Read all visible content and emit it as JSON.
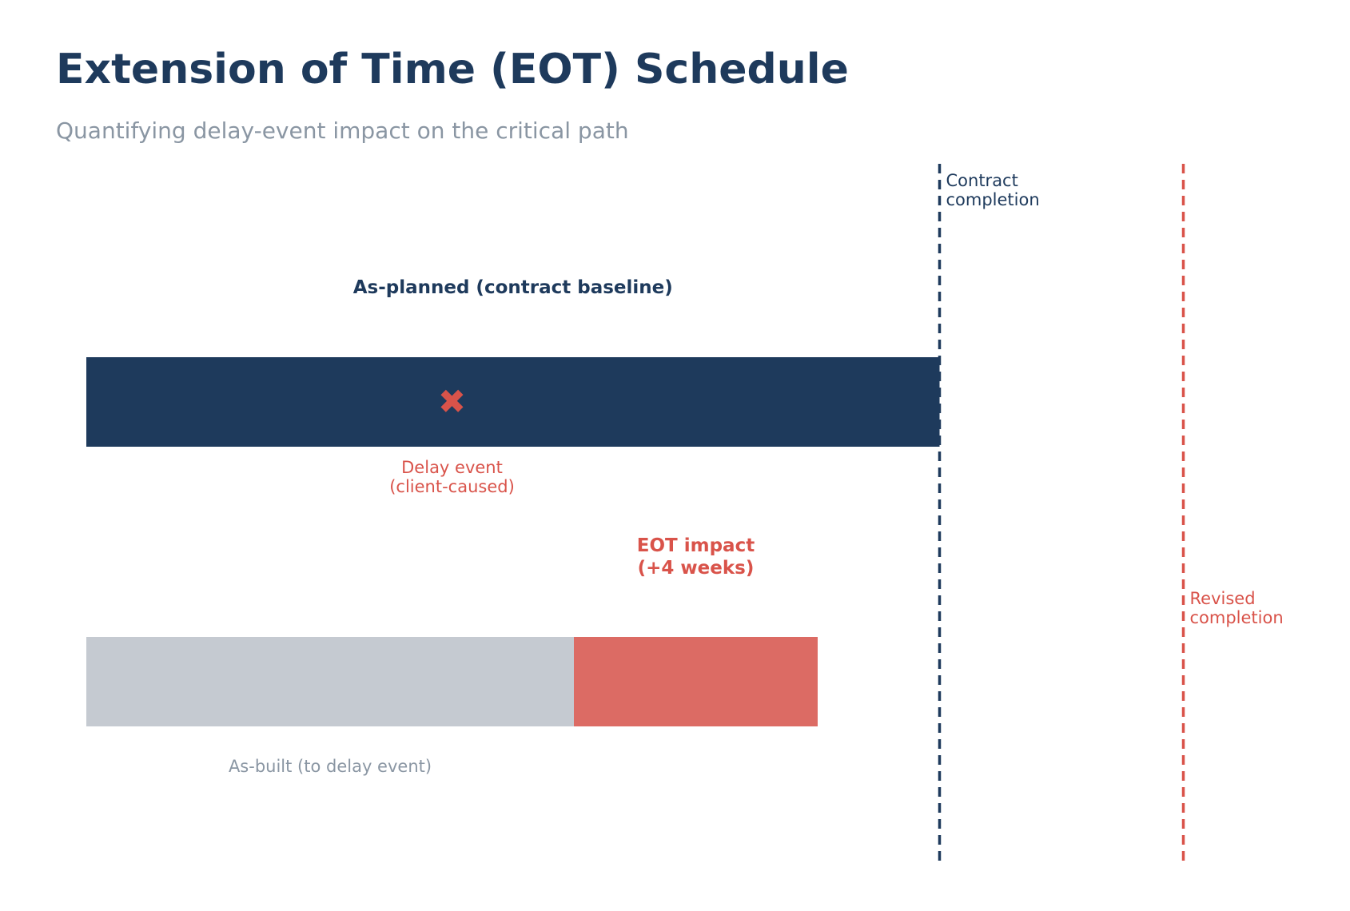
{
  "title": "Extension of Time (EOT) Schedule",
  "subtitle": "Quantifying delay-event impact on the critical path",
  "colors": {
    "navy": "#1e3a5c",
    "red": "#d9534a",
    "red_bar": "#dc6b64",
    "gray_bar": "#c5cad1",
    "gray_text": "#8a96a3"
  },
  "chart_data": {
    "type": "timeline",
    "rows": [
      {
        "name": "As-planned (contract baseline)",
        "segments": [
          {
            "start": 0,
            "end": 35,
            "kind": "planned"
          }
        ]
      },
      {
        "name": "As-built (to delay event)",
        "segments": [
          {
            "start": 0,
            "end": 20,
            "kind": "as-built"
          },
          {
            "start": 20,
            "end": 30,
            "kind": "eot"
          }
        ]
      }
    ],
    "markers": [
      {
        "name": "contract-completion",
        "label_lines": [
          "Contract",
          "completion"
        ],
        "at": 35,
        "color": "navy"
      },
      {
        "name": "revised-completion",
        "label_lines": [
          "Revised",
          "completion"
        ],
        "at": 45,
        "color": "red"
      }
    ],
    "delay_event": {
      "at": 15,
      "symbol": "✖",
      "label_lines": [
        "Delay event",
        "(client-caused)"
      ]
    },
    "eot_impact": {
      "label_lines": [
        "EOT impact",
        "(+4 weeks)"
      ]
    }
  }
}
